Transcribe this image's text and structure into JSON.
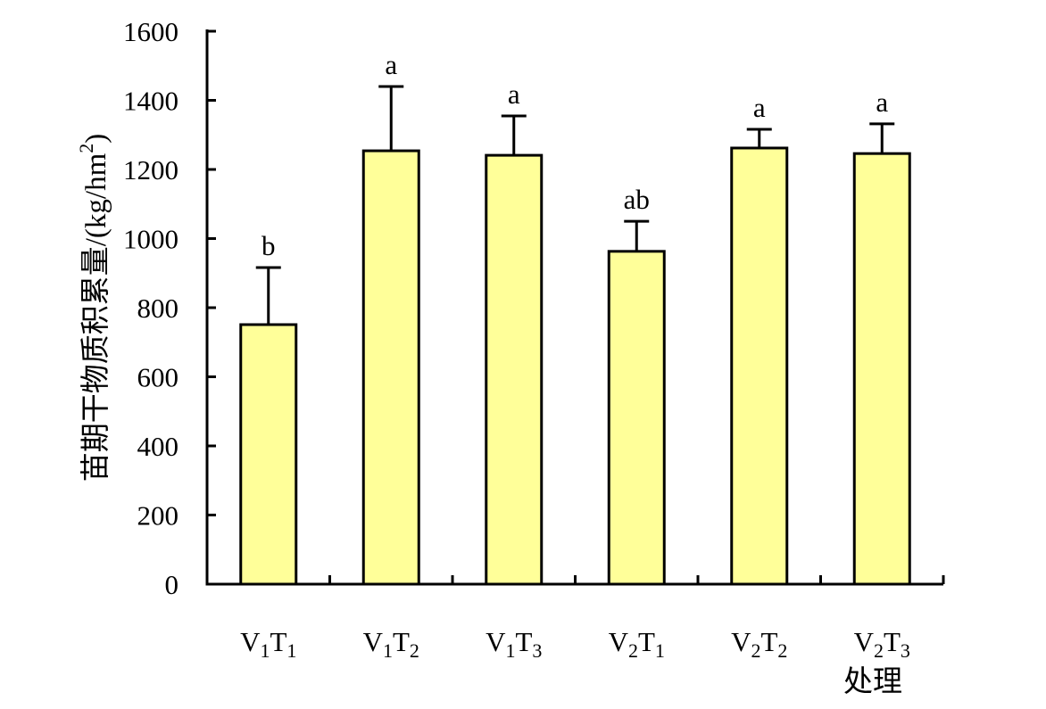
{
  "chart_data": {
    "type": "bar",
    "categories": [
      {
        "base1": "V",
        "sub1": "1",
        "base2": "T",
        "sub2": "1"
      },
      {
        "base1": "V",
        "sub1": "1",
        "base2": "T",
        "sub2": "2"
      },
      {
        "base1": "V",
        "sub1": "1",
        "base2": "T",
        "sub2": "3"
      },
      {
        "base1": "V",
        "sub1": "2",
        "base2": "T",
        "sub2": "1"
      },
      {
        "base1": "V",
        "sub1": "2",
        "base2": "T",
        "sub2": "2"
      },
      {
        "base1": "V",
        "sub1": "2",
        "base2": "T",
        "sub2": "3"
      }
    ],
    "values": [
      751,
      1254,
      1241,
      963,
      1262,
      1246
    ],
    "error_upper": [
      916,
      1440,
      1355,
      1050,
      1316,
      1332
    ],
    "significance_labels": [
      "b",
      "a",
      "a",
      "ab",
      "a",
      "a"
    ],
    "xlabel": "处理",
    "ylabel": "苗期干物质积累量/(kg/hm",
    "ylabel_sup": "2",
    "ylabel_close": ")",
    "ylim": [
      0,
      1600
    ],
    "yticks": [
      0,
      200,
      400,
      600,
      800,
      1000,
      1200,
      1400,
      1600
    ],
    "grid": false,
    "bar_color": "#ffff99",
    "edge_color": "#000000"
  }
}
